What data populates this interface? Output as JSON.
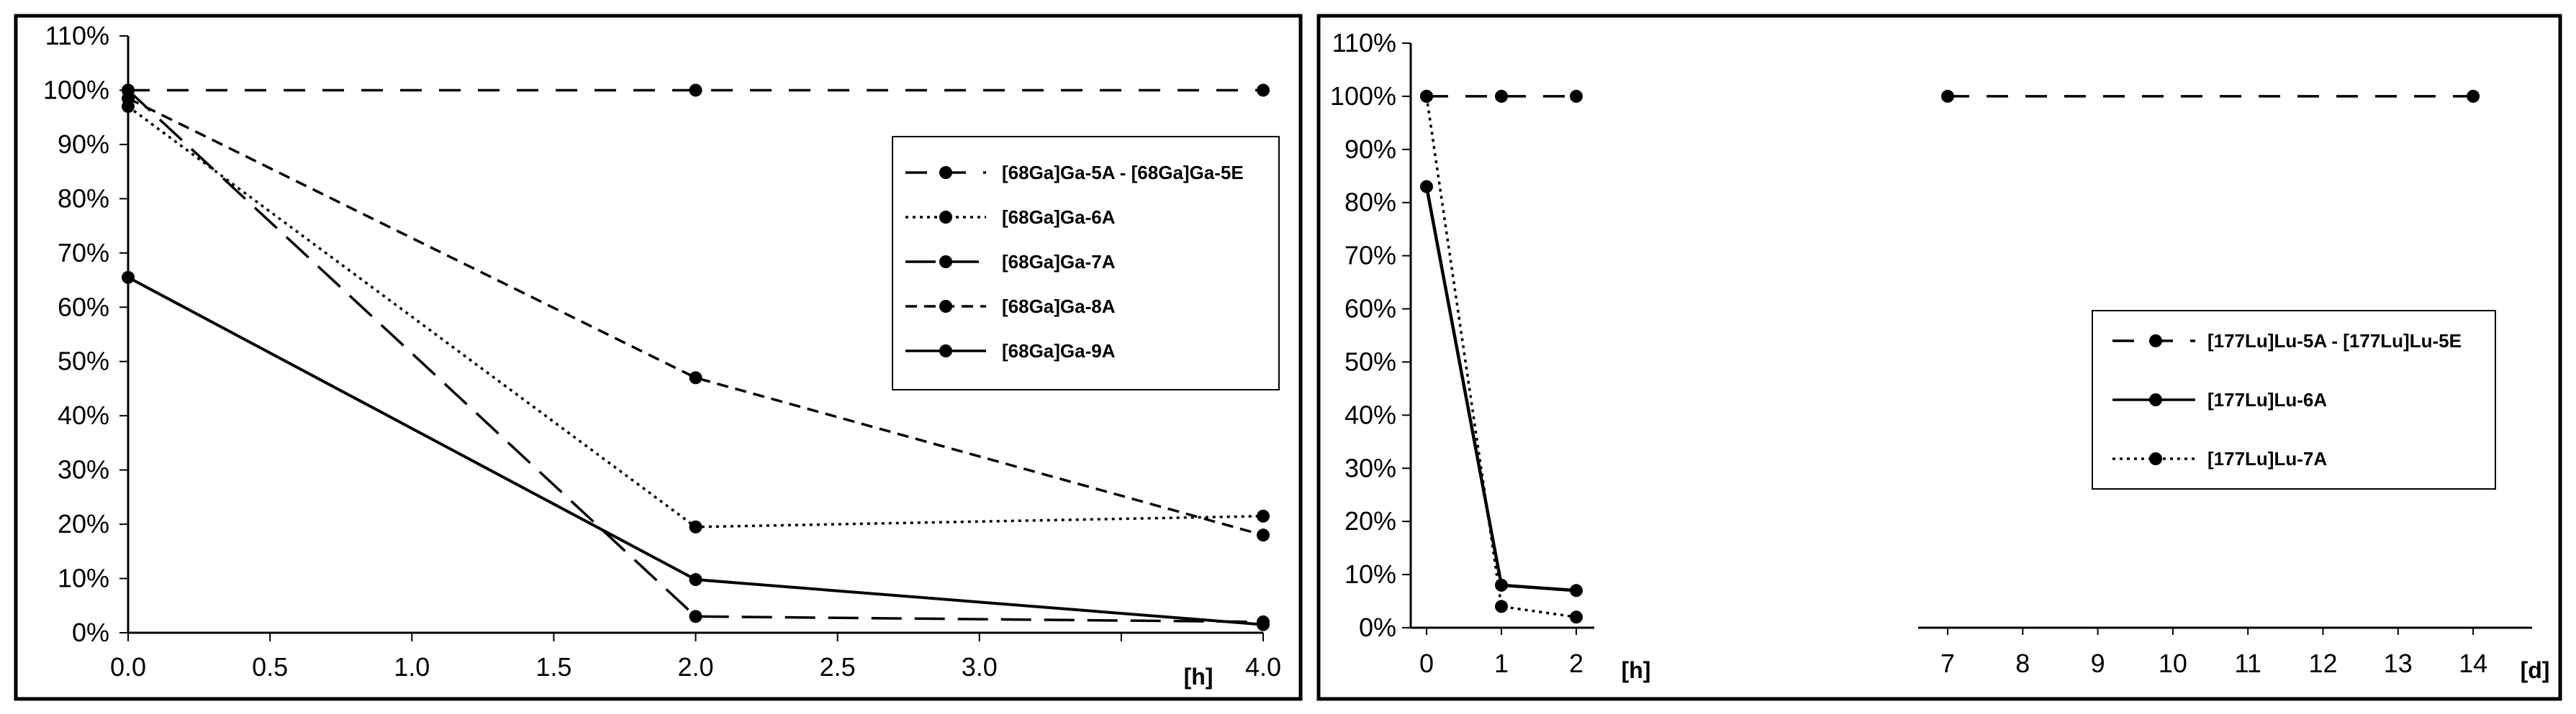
{
  "chart_data": [
    {
      "type": "line",
      "title": "",
      "xlabel": "",
      "ylabel": "",
      "x_unit_label": "[h]",
      "xlim": [
        0,
        4
      ],
      "ylim": [
        0,
        110
      ],
      "x_ticks": [
        0.0,
        0.5,
        1.0,
        1.5,
        2.0,
        2.5,
        3.0,
        3.5,
        4.0
      ],
      "x_tick_labels": [
        "0.0",
        "0.5",
        "1.0",
        "1.5",
        "2.0",
        "2.5",
        "3.0",
        "",
        "4.0"
      ],
      "y_ticks": [
        0,
        10,
        20,
        30,
        40,
        50,
        60,
        70,
        80,
        90,
        100,
        110
      ],
      "y_tick_labels": [
        "0%",
        "10%",
        "20%",
        "30%",
        "40%",
        "50%",
        "60%",
        "70%",
        "80%",
        "90%",
        "100%",
        "110%"
      ],
      "legend_position": "right",
      "series": [
        {
          "name": "[68Ga]Ga-5A - [68Ga]Ga-5E",
          "style": "longdash-gap",
          "x": [
            0,
            2,
            4
          ],
          "y": [
            100,
            100,
            100
          ]
        },
        {
          "name": "[68Ga]Ga-6A",
          "style": "dotted",
          "x": [
            0,
            2,
            4
          ],
          "y": [
            97,
            19.5,
            21.5
          ]
        },
        {
          "name": "[68Ga]Ga-7A",
          "style": "longdash",
          "x": [
            0,
            2,
            4
          ],
          "y": [
            100,
            3,
            2
          ]
        },
        {
          "name": "[68Ga]Ga-8A",
          "style": "dashed",
          "x": [
            0,
            2,
            4
          ],
          "y": [
            98.5,
            47,
            18
          ]
        },
        {
          "name": "[68Ga]Ga-9A",
          "style": "solid",
          "x": [
            0,
            2,
            4
          ],
          "y": [
            65.5,
            9.8,
            1.5
          ]
        }
      ]
    },
    {
      "type": "line",
      "title": "",
      "xlabel": "",
      "ylabel": "",
      "x_unit_labels": [
        "[h]",
        "[d]"
      ],
      "ylim": [
        0,
        110
      ],
      "x_tick_labels": [
        "0",
        "1",
        "2",
        "7",
        "8",
        "9",
        "10",
        "11",
        "12",
        "13",
        "14"
      ],
      "y_ticks": [
        0,
        10,
        20,
        30,
        40,
        50,
        60,
        70,
        80,
        90,
        100,
        110
      ],
      "y_tick_labels": [
        "0%",
        "10%",
        "20%",
        "30%",
        "40%",
        "50%",
        "60%",
        "70%",
        "80%",
        "90%",
        "100%",
        "110%"
      ],
      "legend_position": "right",
      "series": [
        {
          "name": "[177Lu]Lu-5A - [177Lu]Lu-5E",
          "style": "longdash-gap",
          "points": [
            [
              "0",
              100
            ],
            [
              "1",
              100
            ],
            [
              "2",
              100
            ],
            [
              "7",
              100
            ],
            [
              "14",
              100
            ]
          ]
        },
        {
          "name": "[177Lu]Lu-6A",
          "style": "solid",
          "points": [
            [
              "0",
              83
            ],
            [
              "1",
              8
            ],
            [
              "2",
              7
            ]
          ]
        },
        {
          "name": "[177Lu]Lu-7A",
          "style": "dotted",
          "points": [
            [
              "0",
              100
            ],
            [
              "1",
              4
            ],
            [
              "2",
              2
            ]
          ]
        }
      ]
    }
  ],
  "colors": {
    "ink": "#000000",
    "background": "#ffffff"
  }
}
